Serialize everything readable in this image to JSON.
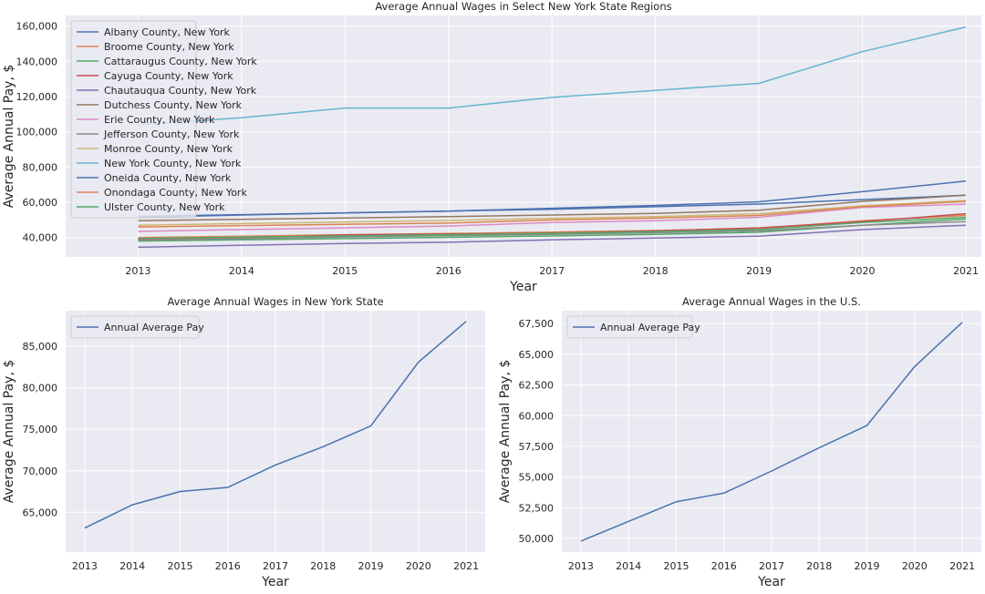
{
  "chart_data": [
    {
      "type": "line",
      "title": "Average Annual Wages in Select New York State Regions",
      "xlabel": "Year",
      "ylabel": "Average Annual Pay, $",
      "x": [
        2013,
        2014,
        2015,
        2016,
        2017,
        2018,
        2019,
        2020,
        2021
      ],
      "xlim": [
        2012.3,
        2021.15
      ],
      "ylim": [
        29000,
        166000
      ],
      "yticks": [
        40000,
        60000,
        80000,
        100000,
        120000,
        140000,
        160000
      ],
      "ytick_labels": [
        "40,000",
        "60,000",
        "80,000",
        "100,000",
        "120,000",
        "140,000",
        "160,000"
      ],
      "grid": true,
      "legend_position": "top-left",
      "series": [
        {
          "name": "Albany County, New York",
          "color": "#4c72b0",
          "values": [
            52000,
            53000,
            54000,
            55000,
            56000,
            57500,
            59000,
            61500,
            64000
          ]
        },
        {
          "name": "Broome County, New York",
          "color": "#dd8452",
          "values": [
            40000,
            40800,
            41600,
            42300,
            43100,
            44000,
            45200,
            49500,
            52500
          ]
        },
        {
          "name": "Cattaraugus County, New York",
          "color": "#55a868",
          "values": [
            38000,
            38700,
            39400,
            40100,
            40900,
            41800,
            43000,
            47000,
            50500
          ]
        },
        {
          "name": "Cayuga County, New York",
          "color": "#c44e52",
          "values": [
            39000,
            39800,
            41500,
            42000,
            42600,
            43800,
            45500,
            49000,
            53500
          ]
        },
        {
          "name": "Chautauqua County, New York",
          "color": "#8172b3",
          "values": [
            34500,
            35600,
            36600,
            37300,
            38700,
            39700,
            40800,
            44500,
            47000
          ]
        },
        {
          "name": "Dutchess County, New York",
          "color": "#937860",
          "values": [
            49500,
            50300,
            51100,
            51900,
            52800,
            53700,
            55500,
            60500,
            64000
          ]
        },
        {
          "name": "Erie County, New York",
          "color": "#da8bc3",
          "values": [
            43500,
            44500,
            45500,
            46500,
            48500,
            49500,
            51500,
            57000,
            59000
          ]
        },
        {
          "name": "Jefferson County, New York",
          "color": "#8c8c8c",
          "values": [
            38500,
            39400,
            40300,
            41000,
            41800,
            42700,
            43800,
            47000,
            49000
          ]
        },
        {
          "name": "Monroe County, New York",
          "color": "#ccb974",
          "values": [
            47000,
            47900,
            48800,
            49700,
            50900,
            51900,
            53500,
            58000,
            61000
          ]
        },
        {
          "name": "New York County, New York",
          "color": "#64b5cd",
          "values": [
            104000,
            108000,
            113500,
            113500,
            119500,
            123500,
            127500,
            145500,
            159500
          ]
        },
        {
          "name": "Oneida County, New York",
          "color": "#4c72b0",
          "values": [
            51500,
            52800,
            53900,
            55000,
            56600,
            58200,
            60300,
            66000,
            72000
          ]
        },
        {
          "name": "Onondaga County, New York",
          "color": "#dd8452",
          "values": [
            46000,
            46800,
            47500,
            48200,
            50000,
            51000,
            52500,
            57500,
            60500
          ]
        },
        {
          "name": "Ulster County, New York",
          "color": "#55a868",
          "values": [
            39500,
            40200,
            40900,
            41600,
            42400,
            43300,
            44500,
            48500,
            51500
          ]
        }
      ]
    },
    {
      "type": "line",
      "title": "Average Annual Wages in New York State",
      "xlabel": "Year",
      "ylabel": "Average Annual Pay, $",
      "x": [
        2013,
        2014,
        2015,
        2016,
        2017,
        2018,
        2019,
        2020,
        2021
      ],
      "xlim": [
        2012.6,
        2021.4
      ],
      "ylim": [
        60200,
        89300
      ],
      "yticks": [
        65000,
        70000,
        75000,
        80000,
        85000
      ],
      "ytick_labels": [
        "65,000",
        "70,000",
        "75,000",
        "80,000",
        "85,000"
      ],
      "grid": true,
      "legend_position": "top-left",
      "series": [
        {
          "name": "Annual Average Pay",
          "color": "#4c72b0",
          "values": [
            63100,
            65900,
            67500,
            68000,
            70700,
            72900,
            75400,
            83100,
            88000
          ]
        }
      ]
    },
    {
      "type": "line",
      "title": "Average Annual Wages in the U.S.",
      "xlabel": "Year",
      "ylabel": "Average Annual Pay, $",
      "x": [
        2013,
        2014,
        2015,
        2016,
        2017,
        2018,
        2019,
        2020,
        2021
      ],
      "xlim": [
        2012.6,
        2021.4
      ],
      "ylim": [
        48900,
        68550
      ],
      "yticks": [
        50000,
        52500,
        55000,
        57500,
        60000,
        62500,
        65000,
        67500
      ],
      "ytick_labels": [
        "50,000",
        "52,500",
        "55,000",
        "57,500",
        "60,000",
        "62,500",
        "65,000",
        "67,500"
      ],
      "grid": true,
      "legend_position": "top-left",
      "series": [
        {
          "name": "Annual Average Pay",
          "color": "#4c72b0",
          "values": [
            49800,
            51400,
            53000,
            53700,
            55500,
            57400,
            59200,
            64000,
            67600
          ]
        }
      ]
    }
  ]
}
